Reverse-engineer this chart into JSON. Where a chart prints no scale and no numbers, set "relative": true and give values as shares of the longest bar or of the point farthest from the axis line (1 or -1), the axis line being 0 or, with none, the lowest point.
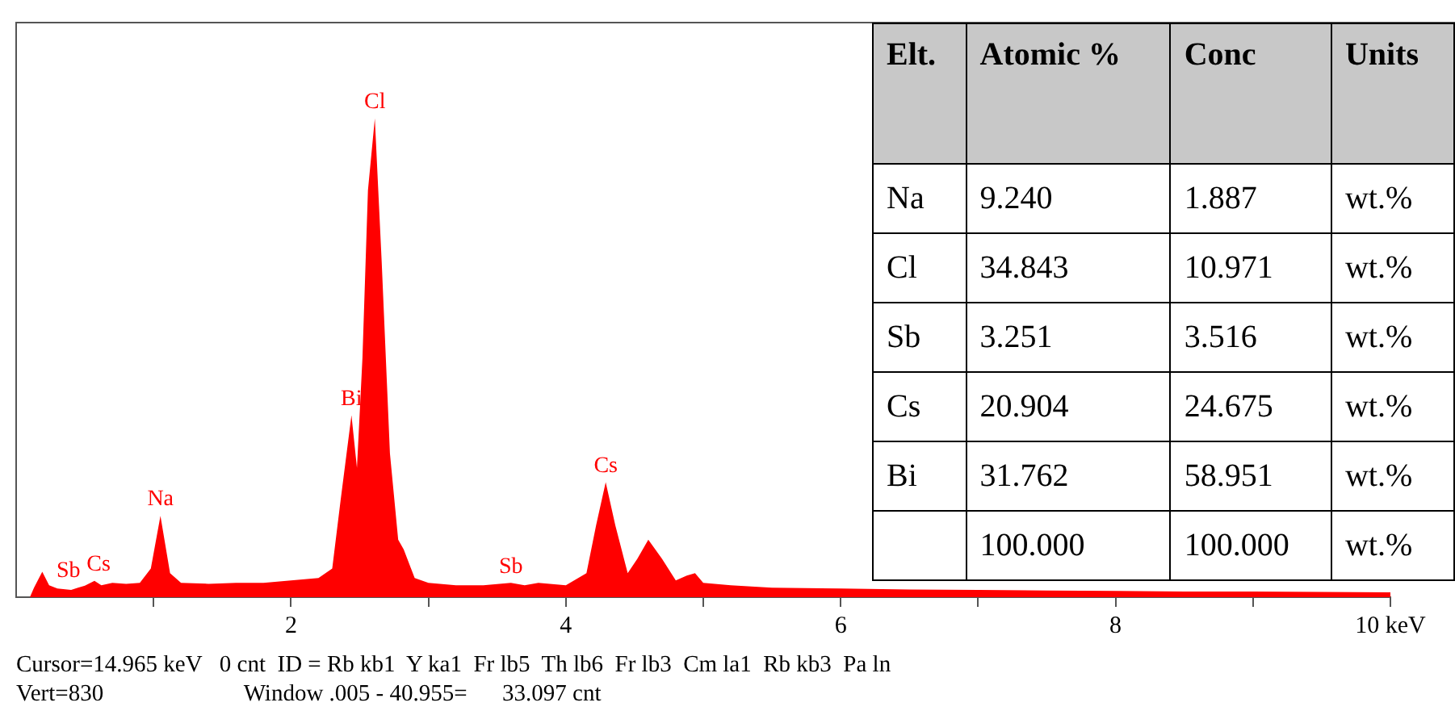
{
  "chart_data": {
    "type": "area",
    "relative": true,
    "color": "#ff0000",
    "legend": false,
    "grid": false,
    "x": [
      0.1,
      0.13,
      0.19,
      0.24,
      0.3,
      0.4,
      0.45,
      0.5,
      0.57,
      0.62,
      0.7,
      0.8,
      0.9,
      0.98,
      1.05,
      1.12,
      1.2,
      1.4,
      1.6,
      1.8,
      2.0,
      2.2,
      2.3,
      2.36,
      2.44,
      2.48,
      2.52,
      2.56,
      2.61,
      2.66,
      2.72,
      2.78,
      2.82,
      2.9,
      3.0,
      3.2,
      3.4,
      3.6,
      3.7,
      3.8,
      4.0,
      4.15,
      4.22,
      4.29,
      4.36,
      4.45,
      4.52,
      4.6,
      4.7,
      4.8,
      4.88,
      4.94,
      5.0,
      5.2,
      5.5,
      6.0,
      6.5,
      7.0,
      7.5,
      8.0,
      8.5,
      9.0,
      9.5,
      10.0
    ],
    "values": [
      0,
      0.02,
      0.053,
      0.025,
      0.018,
      0.015,
      0.02,
      0.024,
      0.034,
      0.025,
      0.03,
      0.028,
      0.03,
      0.06,
      0.17,
      0.05,
      0.03,
      0.028,
      0.03,
      0.03,
      0.035,
      0.04,
      0.06,
      0.2,
      0.38,
      0.27,
      0.5,
      0.85,
      1,
      0.7,
      0.3,
      0.12,
      0.1,
      0.04,
      0.03,
      0.025,
      0.025,
      0.03,
      0.025,
      0.03,
      0.025,
      0.05,
      0.15,
      0.24,
      0.15,
      0.05,
      0.08,
      0.12,
      0.08,
      0.035,
      0.045,
      0.05,
      0.03,
      0.025,
      0.02,
      0.018,
      0.016,
      0.015,
      0.014,
      0.013,
      0.012,
      0.012,
      0.011,
      0.01
    ],
    "xlim": [
      0,
      10
    ],
    "xticks": [
      {
        "value": 1,
        "label": null
      },
      2,
      {
        "value": 3,
        "label": null
      },
      4,
      {
        "value": 5,
        "label": null
      },
      6,
      {
        "value": 7,
        "label": null
      },
      8,
      {
        "value": 9,
        "label": null
      },
      {
        "value": 10,
        "label": "10 keV"
      }
    ],
    "annotations": [
      {
        "text": "Cl",
        "x": 2.61,
        "y": 1
      },
      {
        "text": "Bi",
        "x": 2.44,
        "y": 0.38
      },
      {
        "text": "Na",
        "x": 1.05,
        "y": 0.17
      },
      {
        "text": "Cs",
        "x": 0.6,
        "y": 0.034
      },
      {
        "text": "Sb",
        "x": 0.38,
        "y": 0.02
      },
      {
        "text": "Sb",
        "x": 3.6,
        "y": 0.03
      },
      {
        "text": "Cs",
        "x": 4.29,
        "y": 0.24
      },
      "Cursor=14.965 keV   0 cnt  ID = Rb kb1  Y ka1  Fr lb5  Th lb6  Fr lb3  Cm la1  Rb kb3  Pa ln",
      "Vert=830                        Window .005 - 40.955=      33.097 cnt",
      "Elt.",
      "Atomic %",
      "Conc",
      "Units",
      "Na",
      "9.240",
      "1.887",
      "wt.%",
      "Cl",
      "34.843",
      "10.971",
      "wt.%",
      "Sb",
      "3.251",
      "3.516",
      "wt.%",
      "Cs",
      "20.904",
      "24.675",
      "wt.%",
      "Bi",
      "31.762",
      "58.951",
      "wt.%",
      "100.000",
      "100.000",
      "wt.%"
    ]
  }
}
